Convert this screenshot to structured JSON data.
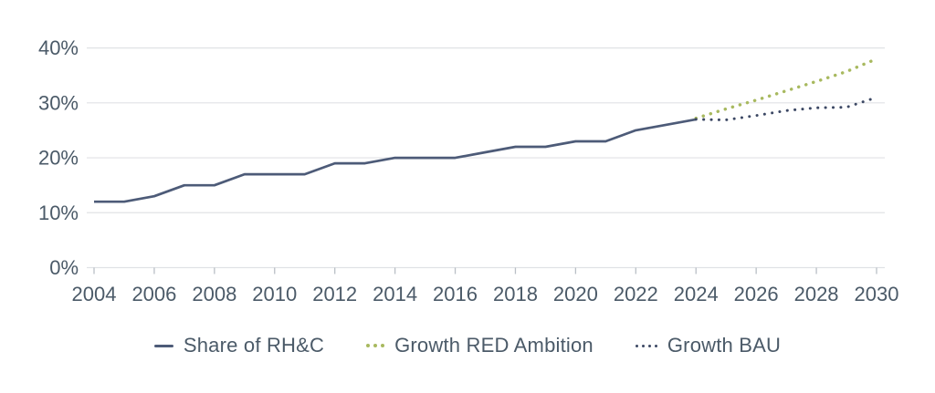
{
  "chart_data": {
    "type": "line",
    "title": "",
    "xlabel": "",
    "ylabel": "",
    "xlim": [
      2004,
      2030
    ],
    "ylim": [
      0,
      40
    ],
    "xticks": [
      2004,
      2006,
      2008,
      2010,
      2012,
      2014,
      2016,
      2018,
      2020,
      2022,
      2024,
      2026,
      2028,
      2030
    ],
    "yticks": [
      0,
      10,
      20,
      30,
      40
    ],
    "ytick_suffix": "%",
    "grid": "horizontal-only",
    "legend_position": "bottom-center",
    "series": [
      {
        "name": "Share of RH&C",
        "line_style": "solid",
        "color": "#4d5b78",
        "x": [
          2004,
          2005,
          2006,
          2007,
          2008,
          2009,
          2010,
          2011,
          2012,
          2013,
          2014,
          2015,
          2016,
          2017,
          2018,
          2019,
          2020,
          2021,
          2022,
          2023,
          2024
        ],
        "values": [
          12,
          12,
          13,
          15,
          15,
          17,
          17,
          17,
          19,
          19,
          20,
          20,
          20,
          21,
          22,
          22,
          23,
          23,
          25,
          26,
          27
        ]
      },
      {
        "name": "Growth RED Ambition",
        "line_style": "dotted",
        "color": "#a8b95f",
        "x": [
          2024,
          2025,
          2026,
          2027,
          2028,
          2029,
          2030
        ],
        "values": [
          27.2,
          28.9,
          30.5,
          32.2,
          33.9,
          35.7,
          38
        ]
      },
      {
        "name": "Growth BAU",
        "line_style": "dotted",
        "color": "#3c4864",
        "x": [
          2024,
          2025,
          2026,
          2027,
          2028,
          2029,
          2030
        ],
        "values": [
          27,
          26.9,
          27.7,
          28.6,
          29.1,
          29.2,
          31
        ]
      }
    ]
  },
  "legend": {
    "items": [
      {
        "label": "Share of RH&C",
        "marker": "line",
        "color": "#4d5b78"
      },
      {
        "label": "Growth RED Ambition",
        "marker": "dots3",
        "color": "#a8b95f"
      },
      {
        "label": "Growth BAU",
        "marker": "dots4",
        "color": "#3c4864"
      }
    ]
  },
  "colors": {
    "text": "#4b5a68",
    "grid": "#e0e2e5",
    "tick": "#b9bfc6",
    "background": "#ffffff"
  }
}
